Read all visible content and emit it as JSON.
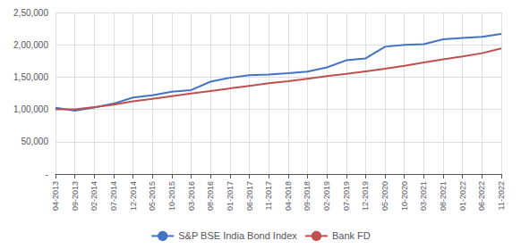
{
  "chart_data": {
    "type": "line",
    "categories": [
      "04-2013",
      "09-2013",
      "02-2014",
      "07-2014",
      "12-2014",
      "05-2015",
      "10-2015",
      "03-2016",
      "08-2016",
      "01-2017",
      "06-2017",
      "11-2017",
      "04-2018",
      "09-2018",
      "02-2019",
      "07-2019",
      "12-2019",
      "05-2020",
      "10-2020",
      "03-2021",
      "08-2021",
      "01-2022",
      "06-2022",
      "11-2022"
    ],
    "series": [
      {
        "name": "S&P BSE India Bond Index",
        "color": "#4472C4",
        "values": [
          102500,
          98000,
          103000,
          109000,
          118500,
          122000,
          127500,
          130000,
          143000,
          149000,
          153000,
          154000,
          156000,
          158500,
          165000,
          176000,
          179000,
          197000,
          200000,
          201000,
          208500,
          210500,
          212500,
          217000
        ]
      },
      {
        "name": "Bank FD",
        "color": "#C0504D",
        "values": [
          100000,
          100200,
          103500,
          107500,
          112500,
          116500,
          120500,
          124500,
          128500,
          132500,
          136500,
          140500,
          143500,
          147500,
          151500,
          155000,
          159000,
          163000,
          167500,
          172500,
          177500,
          182000,
          187000,
          194500
        ]
      }
    ],
    "ylim": [
      0,
      250000
    ],
    "yticks": [
      {
        "value": 0,
        "label": "-"
      },
      {
        "value": 50000,
        "label": "50,000"
      },
      {
        "value": 100000,
        "label": "1,00,000"
      },
      {
        "value": 150000,
        "label": "1,50,000"
      },
      {
        "value": 200000,
        "label": "2,00,000"
      },
      {
        "value": 250000,
        "label": "2,50,000"
      }
    ],
    "grid": true,
    "legend": "bottom"
  }
}
